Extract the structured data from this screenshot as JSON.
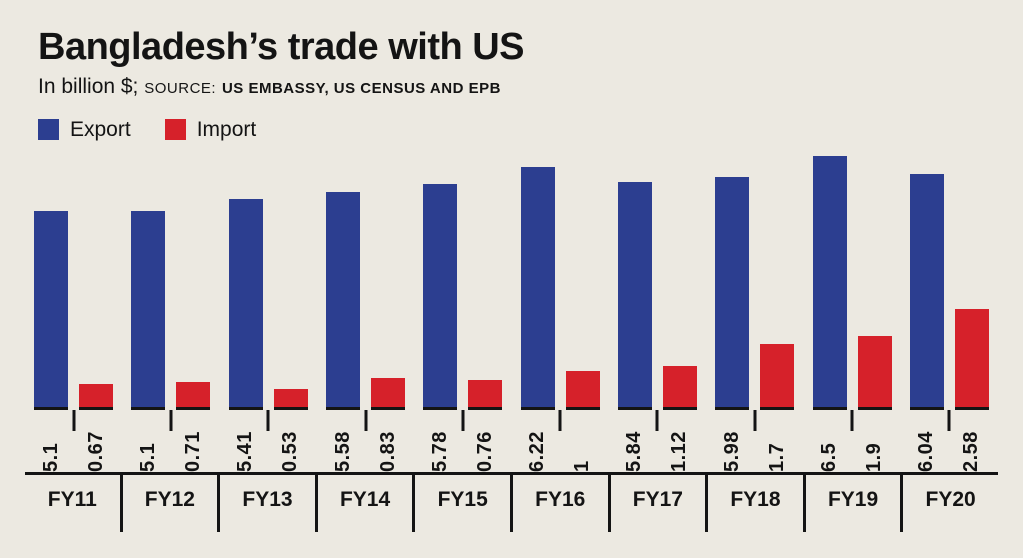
{
  "header": {
    "title": "Bangladesh’s trade with US",
    "unit_label": "In billion $;",
    "source_label": "SOURCE:",
    "source_text": "US EMBASSY, US CENSUS AND EPB"
  },
  "legend": [
    {
      "label": "Export",
      "color": "#2c3e90"
    },
    {
      "label": "Import",
      "color": "#d6212a"
    }
  ],
  "colors": {
    "background": "#ece9e1",
    "export": "#2c3e90",
    "import": "#d6212a",
    "axis": "#141414"
  },
  "chart_data": {
    "type": "bar",
    "title": "Bangladesh’s trade with US",
    "unit": "billion $",
    "categories": [
      "FY11",
      "FY12",
      "FY13",
      "FY14",
      "FY15",
      "FY16",
      "FY17",
      "FY18",
      "FY19",
      "FY20"
    ],
    "series": [
      {
        "name": "Export",
        "color": "#2c3e90",
        "values": [
          5.1,
          5.1,
          5.41,
          5.58,
          5.78,
          6.22,
          5.84,
          5.98,
          6.5,
          6.04
        ]
      },
      {
        "name": "Import",
        "color": "#d6212a",
        "values": [
          0.67,
          0.71,
          0.53,
          0.83,
          0.76,
          1,
          1.12,
          1.7,
          1.9,
          2.58
        ]
      }
    ],
    "value_labels_rotated": true,
    "ylim": [
      0,
      6.5
    ],
    "value_axis_visible": false,
    "grid": false,
    "legend_position": "top-left"
  }
}
